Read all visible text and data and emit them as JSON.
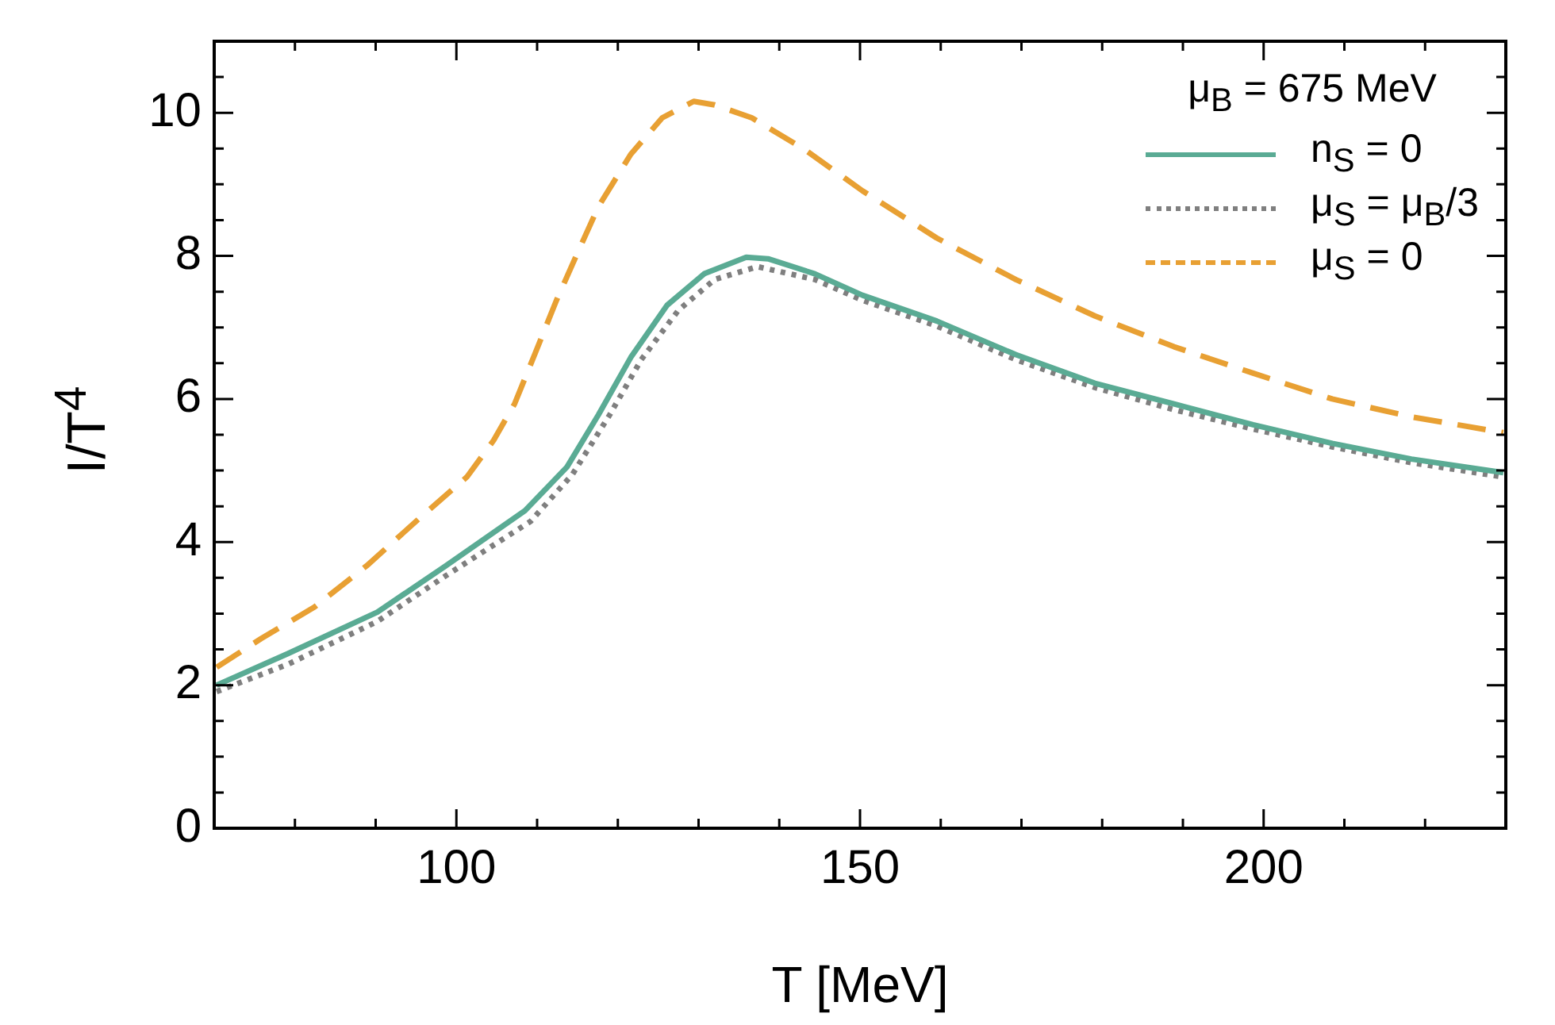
{
  "chart_data": {
    "type": "line",
    "xlabel": "T [MeV]",
    "ylabel": "I/T$^{4}$",
    "legend_title": "μ$_{B}$ = 675 MeV",
    "legend": "top right",
    "xlim": [
      70,
      230
    ],
    "ylim": [
      0,
      11
    ],
    "xticks": [
      {
        "value": 70,
        "label": null
      },
      {
        "value": 80,
        "label": null
      },
      {
        "value": 90,
        "label": null
      },
      100,
      {
        "value": 110,
        "label": null
      },
      {
        "value": 120,
        "label": null
      },
      {
        "value": 130,
        "label": null
      },
      {
        "value": 140,
        "label": null
      },
      150,
      {
        "value": 160,
        "label": null
      },
      {
        "value": 170,
        "label": null
      },
      {
        "value": 180,
        "label": null
      },
      {
        "value": 190,
        "label": null
      },
      200,
      {
        "value": 210,
        "label": null
      },
      {
        "value": 220,
        "label": null
      },
      {
        "value": 230,
        "label": null
      }
    ],
    "yticks": [
      0,
      {
        "value": 0.5,
        "label": null
      },
      {
        "value": 1,
        "label": null
      },
      {
        "value": 1.5,
        "label": null
      },
      2,
      {
        "value": 2.5,
        "label": null
      },
      {
        "value": 3,
        "label": null
      },
      {
        "value": 3.5,
        "label": null
      },
      4,
      {
        "value": 4.5,
        "label": null
      },
      {
        "value": 5,
        "label": null
      },
      {
        "value": 5.5,
        "label": null
      },
      6,
      {
        "value": 6.5,
        "label": null
      },
      {
        "value": 7,
        "label": null
      },
      {
        "value": 7.5,
        "label": null
      },
      8,
      {
        "value": 8.5,
        "label": null
      },
      {
        "value": 9,
        "label": null
      },
      {
        "value": 9.5,
        "label": null
      },
      10,
      {
        "value": 10.5,
        "label": null
      }
    ],
    "series": [
      {
        "name": "n$_{S}$ = 0",
        "color": "#5aab94",
        "line_style": "solid",
        "x": [
          70.3,
          79.1,
          90.2,
          98.7,
          108.5,
          113.7,
          117.6,
          121.6,
          126.1,
          130.7,
          135.9,
          138.6,
          144.4,
          150.3,
          159.5,
          169.3,
          179.1,
          188.9,
          198.7,
          208.5,
          218.3,
          229.7
        ],
        "values": [
          2.0,
          2.44,
          3.02,
          3.67,
          4.44,
          5.05,
          5.78,
          6.58,
          7.31,
          7.75,
          7.98,
          7.96,
          7.75,
          7.45,
          7.09,
          6.62,
          6.22,
          5.93,
          5.64,
          5.38,
          5.16,
          4.97
        ]
      },
      {
        "name": "μ$_{S}$ = μ$_{B}$/3",
        "color": "#7f7f7f",
        "line_style": "dotted",
        "x": [
          70.3,
          79.1,
          90.2,
          98.7,
          109.2,
          114.4,
          119.0,
          122.9,
          127.5,
          132.0,
          137.3,
          144.4,
          150.3,
          159.5,
          169.3,
          179.1,
          188.9,
          198.7,
          208.5,
          218.3,
          229.7
        ],
        "values": [
          1.91,
          2.29,
          2.89,
          3.53,
          4.29,
          4.95,
          5.78,
          6.55,
          7.24,
          7.67,
          7.85,
          7.67,
          7.38,
          7.02,
          6.55,
          6.16,
          5.85,
          5.58,
          5.33,
          5.11,
          4.91
        ]
      },
      {
        "name": "μ$_{S}$ = 0",
        "color": "#e8a033",
        "line_style": "dashed",
        "x": [
          70.3,
          75.8,
          82.4,
          88.9,
          95.4,
          101.3,
          104.6,
          107.2,
          109.8,
          112.4,
          115.0,
          117.6,
          121.6,
          125.5,
          129.4,
          132.0,
          136.6,
          143.1,
          150.3,
          159.5,
          169.3,
          179.1,
          188.9,
          198.7,
          208.5,
          218.3,
          229.7
        ],
        "values": [
          2.25,
          2.65,
          3.09,
          3.67,
          4.33,
          4.91,
          5.42,
          5.93,
          6.65,
          7.38,
          8.04,
          8.69,
          9.42,
          9.93,
          10.16,
          10.11,
          9.93,
          9.49,
          8.91,
          8.25,
          7.67,
          7.16,
          6.73,
          6.36,
          6.0,
          5.75,
          5.53
        ]
      }
    ]
  }
}
